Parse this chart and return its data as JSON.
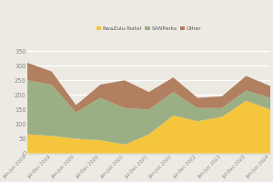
{
  "x_labels": [
    "Jan-Jun\n2019",
    "Jul-Dec\n2019",
    "Jan-Jun\n2020",
    "Jul-Dec\n2020",
    "Jan-Jun\n2021",
    "Jul-Dec\n2021",
    "Jan-Jun\n2022",
    "Jul-Dec\n2022",
    "Jan-Jun\n2023",
    "Jul-Dec\n2023",
    "Jan-Jun\n2024"
  ],
  "x_labels_short": [
    "Jan-Jun 2019",
    "Jul-Dec 2019",
    "Jan-Jun 2020",
    "Jul-Dec 2020",
    "Jan-Jun 2021",
    "Jul-Dec 2021",
    "Jan-Jun 2022",
    "Jul-Dec 2022",
    "Jan-Jun 2023",
    "Jul-Dec 2023",
    "Jan-Jun 2024"
  ],
  "kzn": [
    65,
    60,
    50,
    45,
    30,
    65,
    130,
    110,
    125,
    180,
    150
  ],
  "sanparks": [
    185,
    175,
    90,
    145,
    125,
    85,
    80,
    45,
    30,
    35,
    40
  ],
  "other": [
    60,
    45,
    25,
    45,
    95,
    60,
    50,
    35,
    40,
    50,
    40
  ],
  "colors": {
    "kzn": "#F5C53C",
    "sanparks": "#9BAF85",
    "other": "#B08060"
  },
  "legend_labels": [
    "KwaZulu-Natal",
    "SANParks",
    "Other"
  ],
  "ylabel_ticks": [
    0,
    50,
    100,
    150,
    200,
    250,
    300,
    350
  ],
  "background_color": "#EDEAE3",
  "ylim": [
    0,
    370
  ]
}
